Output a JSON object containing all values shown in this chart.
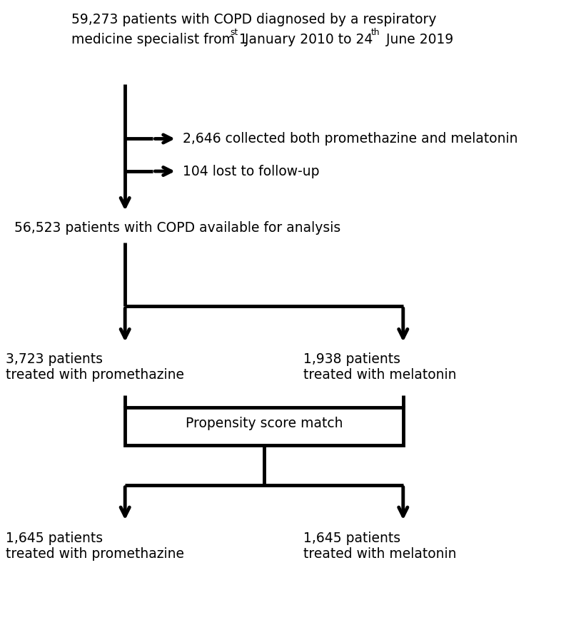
{
  "line1": "59,273 patients with COPD diagnosed by a respiratory",
  "line2": "medicine specialist from 1",
  "line2b": "st",
  "line2c": " January 2010 to 24",
  "line2d": "th",
  "line2e": " June 2019",
  "excl1": "2,646 collected both promethazine and melatonin",
  "excl2": "104 lost to follow-up",
  "node2": "56,523 patients with COPD available for analysis",
  "node3a": "3,723 patients\ntreated with promethazine",
  "node3b": "1,938 patients\ntreated with melatonin",
  "box_psm": "Propensity score match",
  "node4a": "1,645 patients\ntreated with promethazine",
  "node4b": "1,645 patients\ntreated with melatonin",
  "bg_color": "#ffffff",
  "text_color": "#000000",
  "line_color": "#000000",
  "fontsize": 13.5,
  "lw": 3.5,
  "fig_w": 8.0,
  "fig_h": 8.76
}
